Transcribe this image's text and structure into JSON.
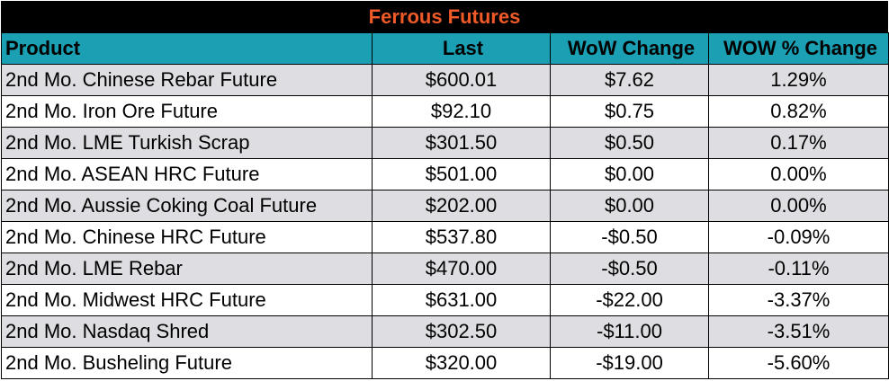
{
  "title": "Ferrous Futures",
  "columns": [
    "Product",
    "Last",
    "WoW Change",
    "WOW % Change"
  ],
  "rows": [
    [
      "2nd Mo. Chinese Rebar Future",
      "$600.01",
      "$7.62",
      "1.29%"
    ],
    [
      "2nd Mo. Iron Ore Future",
      "$92.10",
      "$0.75",
      "0.82%"
    ],
    [
      "2nd Mo. LME Turkish Scrap",
      "$301.50",
      "$0.50",
      "0.17%"
    ],
    [
      "2nd Mo. ASEAN HRC Future",
      "$501.00",
      "$0.00",
      "0.00%"
    ],
    [
      "2nd Mo. Aussie Coking Coal Future",
      "$202.00",
      "$0.00",
      "0.00%"
    ],
    [
      "2nd Mo. Chinese HRC Future",
      "$537.80",
      "-$0.50",
      "-0.09%"
    ],
    [
      "2nd Mo. LME Rebar",
      "$470.00",
      "-$0.50",
      "-0.11%"
    ],
    [
      "2nd Mo. Midwest HRC Future",
      "$631.00",
      "-$22.00",
      "-3.37%"
    ],
    [
      "2nd Mo. Nasdaq Shred",
      "$302.50",
      "-$11.00",
      "-3.51%"
    ],
    [
      "2nd Mo. Busheling Future",
      "$320.00",
      "-$19.00",
      "-5.60%"
    ]
  ],
  "colors": {
    "title_bg": "#000000",
    "title_text": "#f05a28",
    "header_bg": "#1a9fb3",
    "row_alt_bg": "#dedde2",
    "row_bg": "#ffffff"
  }
}
